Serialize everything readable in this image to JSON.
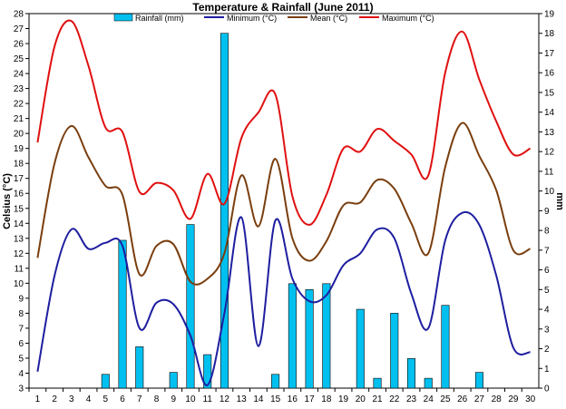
{
  "chart_data": {
    "type": "bar+line",
    "title": "Temperature & Rainfall (June 2011)",
    "ylabel_left": "Celsius (°C)",
    "ylabel_right": "mm",
    "ylim_left": [
      3,
      28
    ],
    "ylim_right": [
      0,
      19
    ],
    "legend_placement": "top",
    "grid": false,
    "x": [
      1,
      2,
      3,
      4,
      5,
      6,
      7,
      8,
      9,
      10,
      11,
      12,
      13,
      14,
      15,
      16,
      17,
      18,
      19,
      20,
      21,
      22,
      23,
      24,
      25,
      26,
      27,
      28,
      29,
      30
    ],
    "rainfall": {
      "name": "Rainfall (mm)",
      "axis": "right",
      "color": "#00c0f0",
      "values": [
        0,
        0,
        0,
        0,
        0.7,
        7.5,
        2.1,
        0,
        0.8,
        8.3,
        1.7,
        18,
        0,
        0,
        0.7,
        5.3,
        5.0,
        5.3,
        0,
        4.0,
        0.5,
        3.8,
        1.5,
        0.5,
        4.2,
        0,
        0.8,
        0,
        0,
        0
      ]
    },
    "series": [
      {
        "name": "Minimum (°C)",
        "color": "#1e1ea0",
        "values": [
          4.1,
          10.5,
          13.6,
          12.3,
          12.7,
          12.5,
          7.0,
          8.7,
          8.6,
          6.5,
          3.2,
          8.0,
          14.4,
          5.8,
          14.2,
          10.3,
          8.8,
          9.2,
          11.2,
          12.0,
          13.6,
          13.0,
          9.3,
          7.0,
          12.9,
          14.7,
          13.9,
          10.5,
          5.7,
          5.4
        ]
      },
      {
        "name": "Mean (°C)",
        "color": "#7a3e0e",
        "values": [
          11.7,
          18.0,
          20.5,
          18.4,
          16.5,
          15.9,
          10.6,
          12.5,
          12.6,
          10.1,
          10.3,
          12.0,
          17.2,
          13.8,
          18.3,
          13.0,
          11.5,
          12.8,
          15.2,
          15.4,
          16.9,
          16.3,
          14.0,
          12.0,
          17.8,
          20.7,
          18.5,
          16.2,
          12.2,
          12.3
        ]
      },
      {
        "name": "Maximum (°C)",
        "color": "#e01010",
        "values": [
          19.4,
          25.8,
          27.5,
          24.5,
          20.4,
          20.1,
          16.1,
          16.7,
          16.2,
          14.3,
          17.3,
          15.3,
          19.7,
          21.4,
          22.6,
          15.8,
          13.9,
          15.9,
          19.0,
          18.8,
          20.3,
          19.5,
          18.6,
          17.2,
          24.1,
          26.8,
          23.6,
          20.8,
          18.6,
          19.0
        ]
      }
    ],
    "xticks": [
      "1",
      "2",
      "3",
      "4",
      "5",
      "6",
      "7",
      "8",
      "9",
      "10",
      "11",
      "12",
      "13",
      "14",
      "15",
      "16",
      "17",
      "18",
      "19",
      "20",
      "21",
      "22",
      "23",
      "24",
      "25",
      "26",
      "27",
      "28",
      "29",
      "30"
    ],
    "yticks_left": [
      "3",
      "4",
      "5",
      "6",
      "7",
      "8",
      "9",
      "10",
      "11",
      "12",
      "13",
      "14",
      "15",
      "16",
      "17",
      "18",
      "19",
      "20",
      "21",
      "22",
      "23",
      "24",
      "25",
      "26",
      "27",
      "28"
    ],
    "yticks_right": [
      "0",
      "1",
      "2",
      "3",
      "4",
      "5",
      "6",
      "7",
      "8",
      "9",
      "10",
      "11",
      "12",
      "13",
      "14",
      "15",
      "16",
      "17",
      "18",
      "19"
    ]
  }
}
